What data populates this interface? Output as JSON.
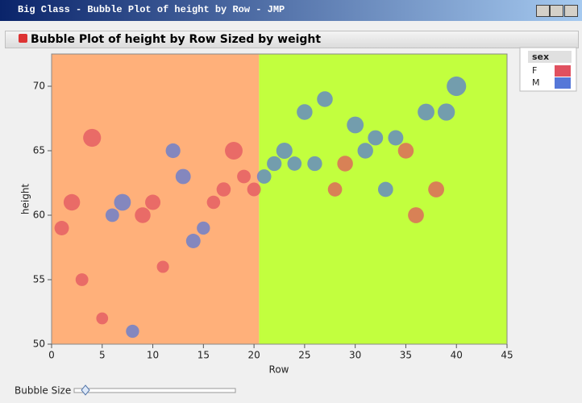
{
  "window_title": "Big Class - Bubble Plot of height by Row - JMP",
  "report_title": "Bubble Plot of height by Row Sized by weight",
  "slider_label": "Bubble Size",
  "chart_data": {
    "type": "bubble",
    "x_label": "Row",
    "y_label": "height",
    "xlim": [
      0,
      45
    ],
    "xticks": [
      0,
      5,
      10,
      15,
      20,
      25,
      30,
      35,
      40,
      45
    ],
    "ylim": [
      50,
      72.5
    ],
    "yticks": [
      50,
      55,
      60,
      65,
      70
    ],
    "legend_title": "sex",
    "regions": [
      {
        "xlim": [
          0,
          20.5
        ],
        "color": "#ffb07a"
      },
      {
        "xlim": [
          20.5,
          45
        ],
        "color": "#c2ff3e"
      }
    ],
    "series": [
      {
        "name": "F",
        "color": "#e0505f",
        "x": [
          1,
          2,
          3,
          4,
          5,
          9,
          10,
          11,
          16,
          17,
          18,
          19,
          20,
          28,
          29,
          35,
          36,
          38
        ],
        "values": [
          59,
          61,
          55,
          66,
          52,
          60,
          61,
          56,
          61,
          62,
          65,
          63,
          62,
          62,
          64,
          65,
          60,
          62
        ],
        "sizes": [
          95,
          123,
          74,
          145,
          64,
          112,
          107,
          67,
          81,
          91,
          142,
          84,
          85,
          92,
          112,
          112,
          115,
          116
        ]
      },
      {
        "name": "M",
        "color": "#5577d8",
        "x": [
          6,
          7,
          8,
          12,
          13,
          14,
          15,
          21,
          22,
          23,
          24,
          25,
          26,
          27,
          30,
          31,
          32,
          33,
          34,
          37,
          39,
          40
        ],
        "values": [
          60,
          61,
          51,
          65,
          63,
          58,
          59,
          63,
          64,
          65,
          64,
          68,
          64,
          69,
          67,
          65,
          66,
          62,
          66,
          68,
          68,
          70
        ],
        "sizes": [
          84,
          128,
          79,
          98,
          105,
          95,
          79,
          93,
          99,
          119,
          92,
          112,
          99,
          113,
          128,
          111,
          105,
          104,
          106,
          128,
          134,
          172
        ]
      }
    ]
  }
}
